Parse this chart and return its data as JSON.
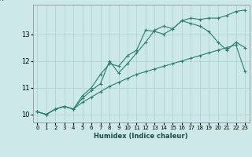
{
  "xlabel": "Humidex (Indice chaleur)",
  "ylabel": "",
  "bg_color": "#cce8e8",
  "line_color": "#2e7d6e",
  "grid_color": "#aacfcf",
  "xlim": [
    -0.5,
    23.5
  ],
  "ylim": [
    9.7,
    14.1
  ],
  "yticks": [
    10,
    11,
    12,
    13
  ],
  "xticks": [
    0,
    1,
    2,
    3,
    4,
    5,
    6,
    7,
    8,
    9,
    10,
    11,
    12,
    13,
    14,
    15,
    16,
    17,
    18,
    19,
    20,
    21,
    22,
    23
  ],
  "series": [
    {
      "x": [
        0,
        1,
        2,
        3,
        4,
        5,
        6,
        7,
        8,
        9,
        10,
        11,
        12,
        13,
        14,
        15,
        16,
        17,
        18,
        19,
        20,
        21,
        22,
        23
      ],
      "y": [
        10.1,
        10.0,
        10.2,
        10.3,
        10.2,
        10.7,
        11.0,
        11.5,
        11.9,
        11.8,
        12.2,
        12.4,
        13.15,
        13.1,
        13.0,
        13.2,
        13.5,
        13.4,
        13.3,
        13.1,
        12.7,
        12.4,
        12.7,
        12.5
      ]
    },
    {
      "x": [
        0,
        1,
        2,
        3,
        4,
        5,
        6,
        7,
        8,
        9,
        10,
        11,
        12,
        13,
        14,
        15,
        16,
        17,
        18,
        19,
        20,
        21,
        22,
        23
      ],
      "y": [
        10.1,
        10.0,
        10.2,
        10.3,
        10.2,
        10.6,
        10.9,
        11.15,
        12.0,
        11.55,
        11.9,
        12.3,
        12.7,
        13.15,
        13.3,
        13.2,
        13.5,
        13.6,
        13.55,
        13.6,
        13.6,
        13.7,
        13.85,
        13.9
      ]
    },
    {
      "x": [
        0,
        1,
        2,
        3,
        4,
        5,
        6,
        7,
        8,
        9,
        10,
        11,
        12,
        13,
        14,
        15,
        16,
        17,
        18,
        19,
        20,
        21,
        22,
        23
      ],
      "y": [
        10.1,
        10.0,
        10.2,
        10.3,
        10.2,
        10.45,
        10.65,
        10.85,
        11.05,
        11.2,
        11.35,
        11.5,
        11.6,
        11.7,
        11.8,
        11.9,
        12.0,
        12.1,
        12.2,
        12.3,
        12.4,
        12.5,
        12.6,
        11.6
      ]
    }
  ]
}
